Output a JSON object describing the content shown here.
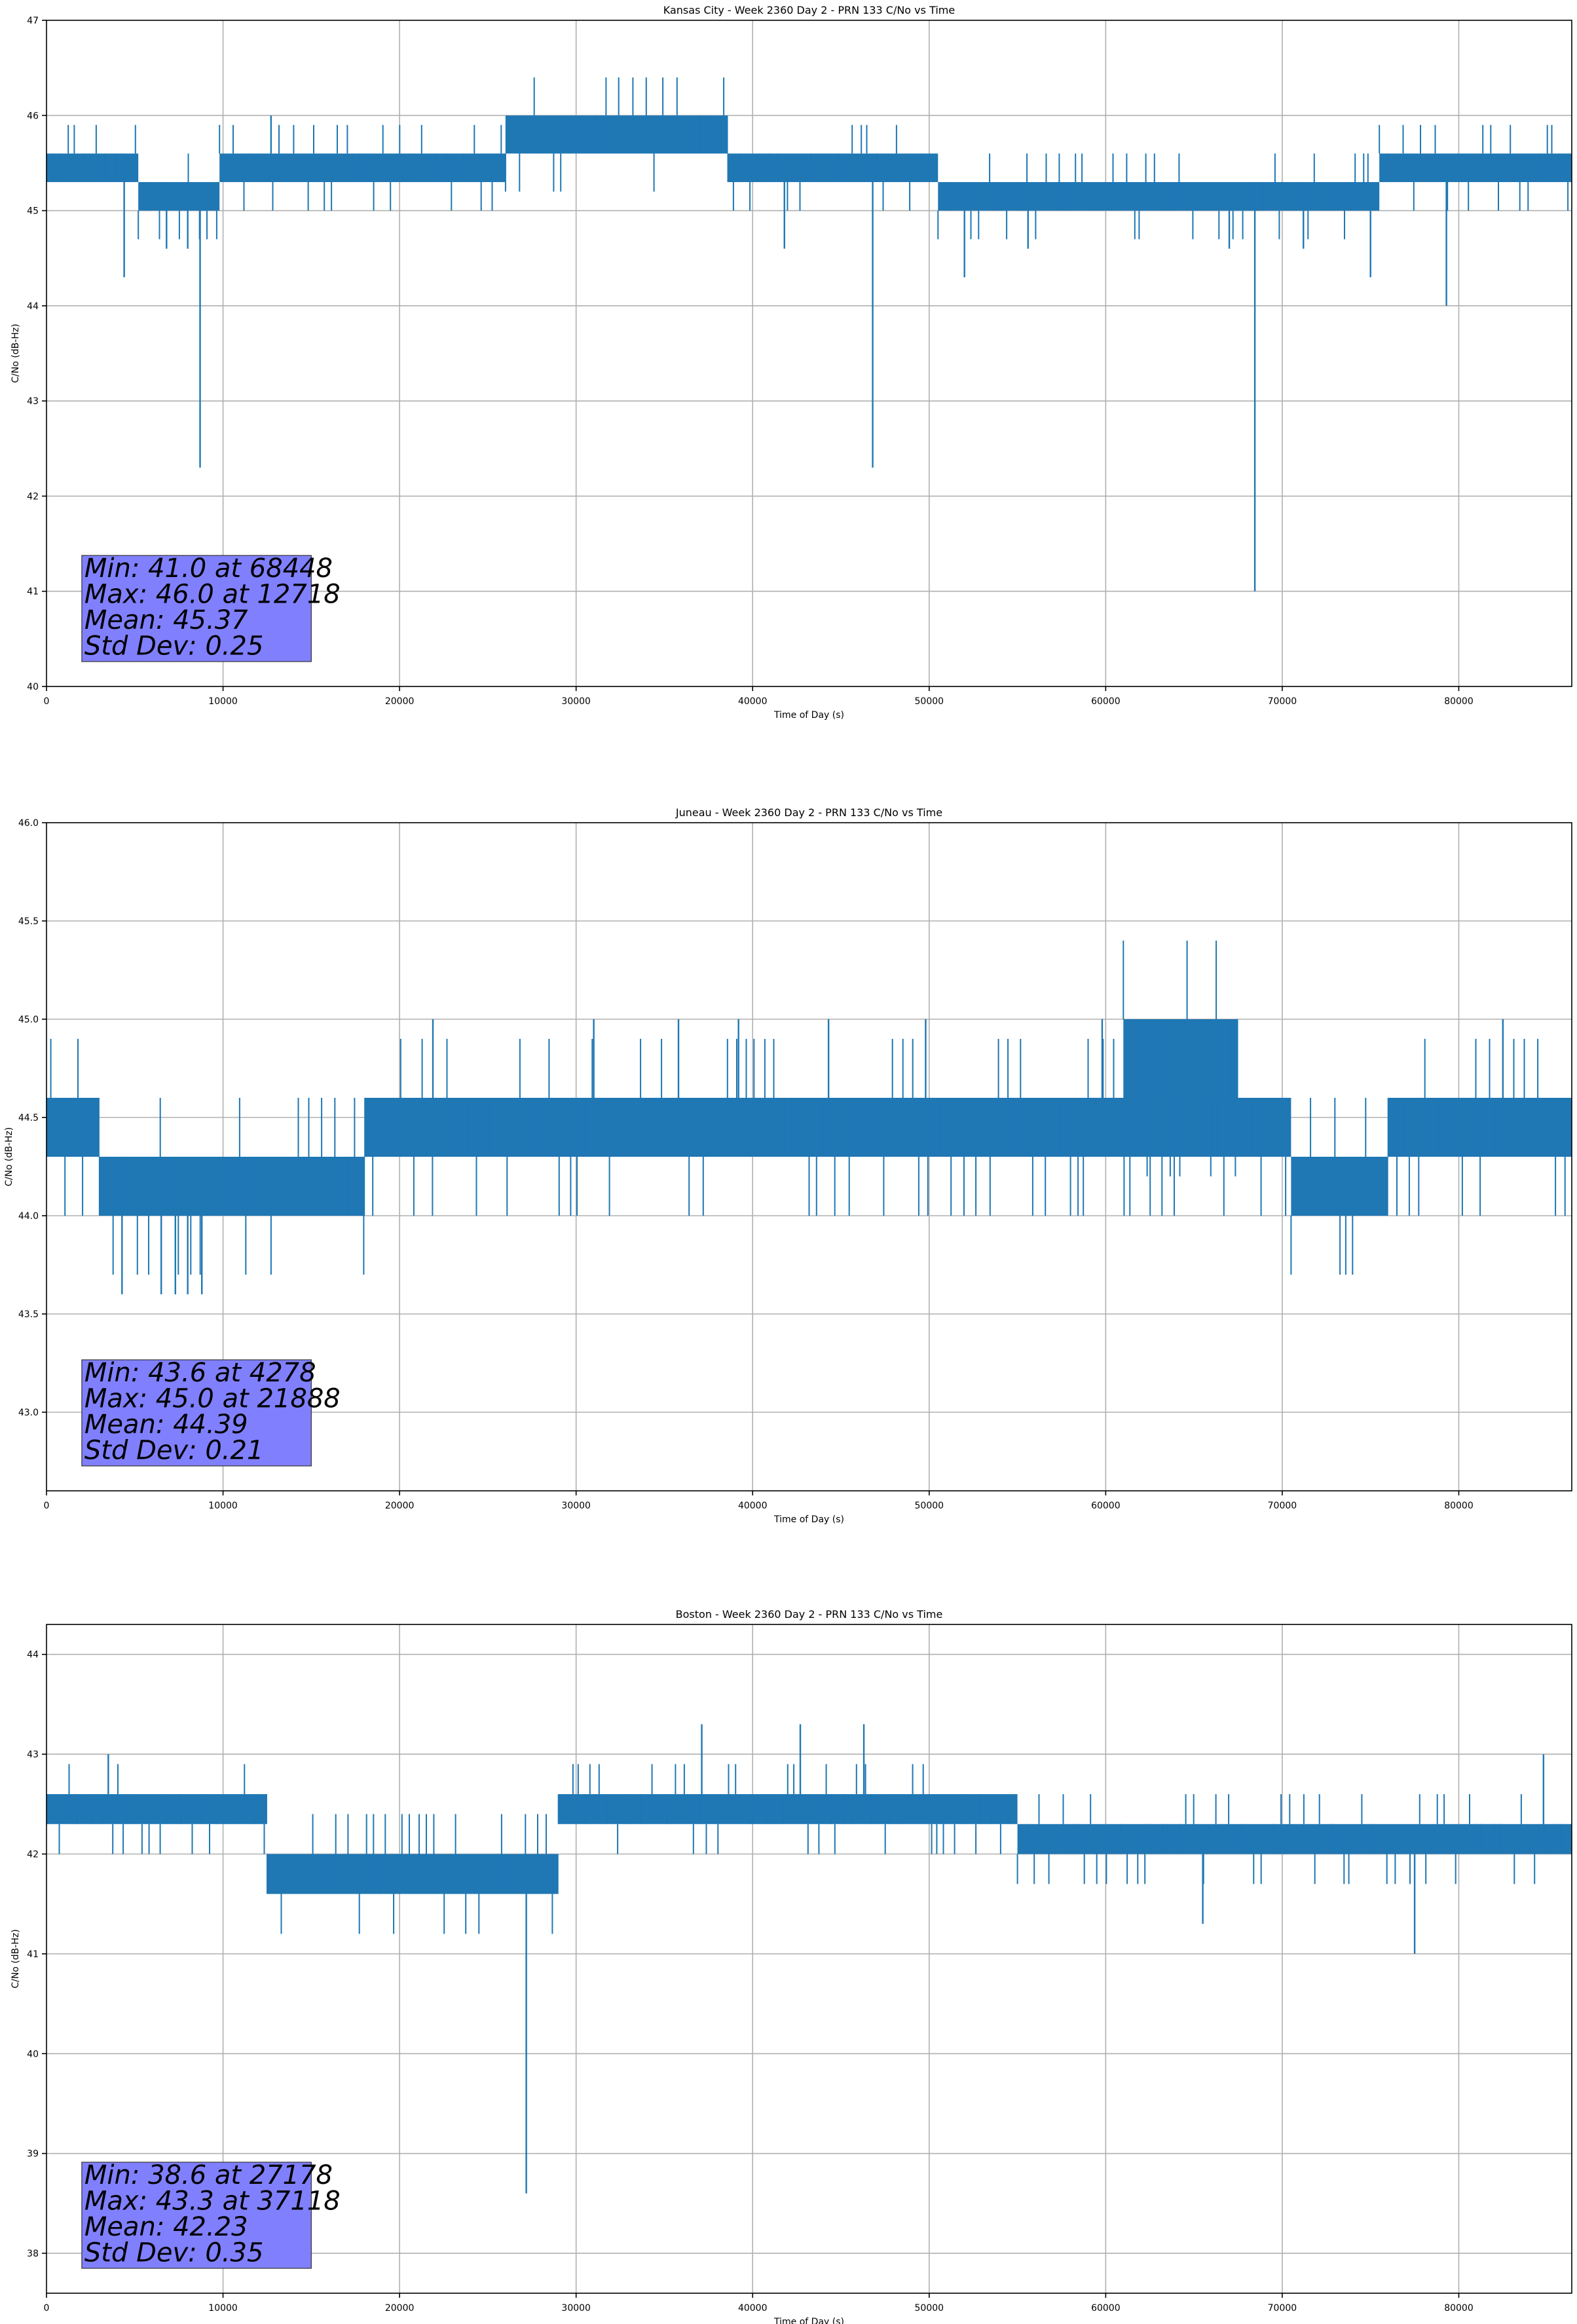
{
  "figure": {
    "series_color": "#1f77b4",
    "stats_box_color": "#8080ff"
  },
  "chart_data": [
    {
      "type": "line",
      "title": "Kansas City - Week 2360 Day 2 - PRN 133 C/No vs Time",
      "xlabel": "Time of Day (s)",
      "ylabel": "C/No (dB-Hz)",
      "xlim": [
        0,
        86400
      ],
      "ylim": [
        40,
        47
      ],
      "xticks": [
        0,
        10000,
        20000,
        30000,
        40000,
        50000,
        60000,
        70000,
        80000
      ],
      "yticks": [
        40,
        41,
        42,
        43,
        44,
        45,
        46,
        47
      ],
      "ytick_labels": [
        "40",
        "41",
        "42",
        "43",
        "44",
        "45",
        "46",
        "47"
      ],
      "grid": true,
      "stats": [
        "Min: 41.0 at 68448",
        "Max: 46.0 at 12718",
        "Mean: 45.37",
        "Std Dev: 0.25"
      ],
      "series": [
        {
          "name": "PRN 133 C/No",
          "bands": [
            {
              "x0": 0,
              "x1": 5200,
              "lo": 45.3,
              "hi": 45.6
            },
            {
              "x0": 5200,
              "x1": 9800,
              "lo": 45.0,
              "hi": 45.3
            },
            {
              "x0": 9800,
              "x1": 26000,
              "lo": 45.3,
              "hi": 45.6
            },
            {
              "x0": 26000,
              "x1": 38600,
              "lo": 45.6,
              "hi": 46.0
            },
            {
              "x0": 38600,
              "x1": 50500,
              "lo": 45.3,
              "hi": 45.6
            },
            {
              "x0": 50500,
              "x1": 75500,
              "lo": 45.0,
              "hi": 45.3
            },
            {
              "x0": 75500,
              "x1": 86400,
              "lo": 45.3,
              "hi": 45.6
            }
          ],
          "spikes": [
            {
              "x": 4400,
              "y": 44.3
            },
            {
              "x": 6800,
              "y": 44.6
            },
            {
              "x": 8000,
              "y": 44.6
            },
            {
              "x": 8700,
              "y": 42.3
            },
            {
              "x": 12718,
              "y": 46.0
            },
            {
              "x": 41800,
              "y": 44.6
            },
            {
              "x": 46800,
              "y": 42.3
            },
            {
              "x": 52000,
              "y": 44.3
            },
            {
              "x": 55600,
              "y": 44.6
            },
            {
              "x": 67000,
              "y": 44.6
            },
            {
              "x": 68448,
              "y": 41.0
            },
            {
              "x": 71200,
              "y": 44.6
            },
            {
              "x": 75000,
              "y": 44.3
            },
            {
              "x": 79300,
              "y": 44.0
            }
          ]
        }
      ]
    },
    {
      "type": "line",
      "title": "Juneau - Week 2360 Day 2 - PRN 133 C/No vs Time",
      "xlabel": "Time of Day (s)",
      "ylabel": "C/No (dB-Hz)",
      "xlim": [
        0,
        86400
      ],
      "ylim": [
        42.6,
        46.0
      ],
      "xticks": [
        0,
        10000,
        20000,
        30000,
        40000,
        50000,
        60000,
        70000,
        80000
      ],
      "yticks": [
        43.0,
        43.5,
        44.0,
        44.5,
        45.0,
        45.5,
        46.0
      ],
      "ytick_labels": [
        "43.0",
        "43.5",
        "44.0",
        "44.5",
        "45.0",
        "45.5",
        "46.0"
      ],
      "grid": true,
      "stats": [
        "Min: 43.6 at 4278",
        "Max: 45.0 at 21888",
        "Mean: 44.39",
        "Std Dev: 0.21"
      ],
      "series": [
        {
          "name": "PRN 133 C/No",
          "bands": [
            {
              "x0": 0,
              "x1": 3000,
              "lo": 44.3,
              "hi": 44.6
            },
            {
              "x0": 3000,
              "x1": 18000,
              "lo": 44.0,
              "hi": 44.3
            },
            {
              "x0": 18000,
              "x1": 70500,
              "lo": 44.3,
              "hi": 44.6
            },
            {
              "x0": 61000,
              "x1": 67500,
              "lo": 44.6,
              "hi": 45.0
            },
            {
              "x0": 70500,
              "x1": 76000,
              "lo": 44.0,
              "hi": 44.3
            },
            {
              "x0": 76000,
              "x1": 86400,
              "lo": 44.3,
              "hi": 44.6
            }
          ],
          "spikes": [
            {
              "x": 4278,
              "y": 43.6
            },
            {
              "x": 6500,
              "y": 43.6
            },
            {
              "x": 7300,
              "y": 43.6
            },
            {
              "x": 8000,
              "y": 43.6
            },
            {
              "x": 8800,
              "y": 43.6
            },
            {
              "x": 21888,
              "y": 45.0
            },
            {
              "x": 31000,
              "y": 45.0
            },
            {
              "x": 35800,
              "y": 45.0
            },
            {
              "x": 39200,
              "y": 45.0
            },
            {
              "x": 44300,
              "y": 45.0
            },
            {
              "x": 49800,
              "y": 45.0
            },
            {
              "x": 59800,
              "y": 45.0
            },
            {
              "x": 82500,
              "y": 45.0
            }
          ]
        }
      ]
    },
    {
      "type": "line",
      "title": "Boston - Week 2360 Day 2 - PRN 133 C/No vs Time",
      "xlabel": "Time of Day (s)",
      "ylabel": "C/No (dB-Hz)",
      "xlim": [
        0,
        86400
      ],
      "ylim": [
        37.6,
        44.3
      ],
      "xticks": [
        0,
        10000,
        20000,
        30000,
        40000,
        50000,
        60000,
        70000,
        80000
      ],
      "yticks": [
        38,
        39,
        40,
        41,
        42,
        43,
        44
      ],
      "ytick_labels": [
        "38",
        "39",
        "40",
        "41",
        "42",
        "43",
        "44"
      ],
      "grid": true,
      "stats": [
        "Min: 38.6 at 27178",
        "Max: 43.3 at 37118",
        "Mean: 42.23",
        "Std Dev: 0.35"
      ],
      "series": [
        {
          "name": "PRN 133 C/No",
          "bands": [
            {
              "x0": 0,
              "x1": 12500,
              "lo": 42.3,
              "hi": 42.6
            },
            {
              "x0": 12500,
              "x1": 29000,
              "lo": 41.6,
              "hi": 42.0
            },
            {
              "x0": 29000,
              "x1": 40000,
              "lo": 42.3,
              "hi": 42.6
            },
            {
              "x0": 40000,
              "x1": 55000,
              "lo": 42.3,
              "hi": 42.6
            },
            {
              "x0": 55000,
              "x1": 86400,
              "lo": 42.0,
              "hi": 42.3
            }
          ],
          "spikes": [
            {
              "x": 3500,
              "y": 43.0
            },
            {
              "x": 27178,
              "y": 38.6
            },
            {
              "x": 37118,
              "y": 43.3
            },
            {
              "x": 42700,
              "y": 43.3
            },
            {
              "x": 46300,
              "y": 43.3
            },
            {
              "x": 65500,
              "y": 41.3
            },
            {
              "x": 77500,
              "y": 41.0
            },
            {
              "x": 84800,
              "y": 43.0
            }
          ]
        }
      ]
    }
  ]
}
